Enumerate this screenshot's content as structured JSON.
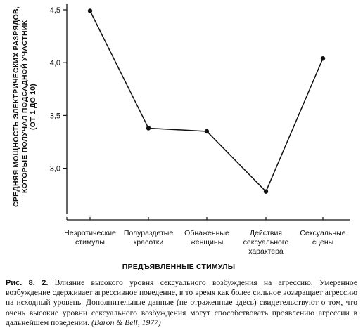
{
  "chart_data": {
    "type": "line",
    "title": "",
    "xlabel": "ПРЕДЪЯВЛЕННЫЕ СТИМУЛЫ",
    "ylabel_lines": [
      "СРЕДНЯЯ МОЩНОСТЬ ЭЛЕКТРИЧЕСКИХ РАЗРЯДОВ,",
      "КОТОРЫЕ ПОЛУЧАЛ ПОДСАДНОЙ УЧАСТНИК",
      "(ОТ 1 ДО 10)"
    ],
    "categories": [
      [
        "Неэротические",
        "стимулы"
      ],
      [
        "Полураздетые",
        "красотки"
      ],
      [
        "Обнаженные",
        "женщины"
      ],
      [
        "Действия",
        "сексуального",
        "характера"
      ],
      [
        "Сексуальные",
        "сцены"
      ]
    ],
    "values": [
      4.49,
      3.38,
      3.35,
      2.78,
      4.04
    ],
    "ylim": [
      2.7,
      4.5
    ],
    "yticks": [
      "4,5",
      "4,0",
      "3,5",
      "3,0"
    ],
    "ytick_values": [
      4.5,
      4.0,
      3.5,
      3.0
    ],
    "grid": false,
    "legend": "none"
  },
  "caption": {
    "fig_label": "Рис. 8. 2.",
    "text": " Влияние высокого уровня сексуального возбуждения на агрессию. Умеренное возбуждение сдерживает агрессивное поведение, в то время как более сильное возвращает агрессию на исходный уровень. Дополнительные данные (не отраженные здесь) свидетельствуют о том, что очень высокие уровни сексуального возбуждения могут способствовать проявлению агрессии в дальнейшем поведении. ",
    "citation": "(Baron & Bell, 1977)"
  }
}
